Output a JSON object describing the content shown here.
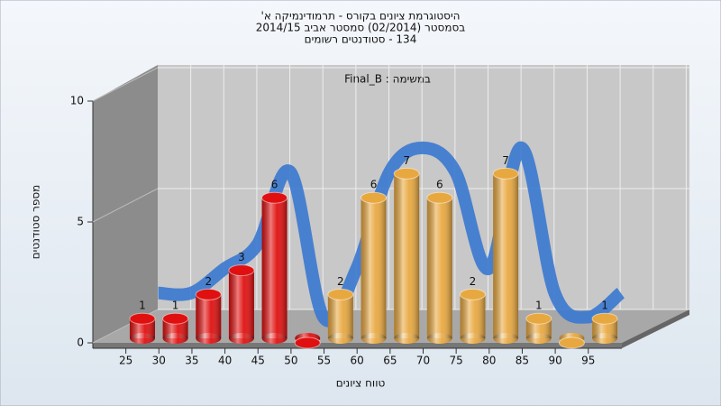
{
  "chart_data": {
    "type": "bar",
    "title": [
      "היסטוגרמת ציונים בקורס - תרמודינמיקה א'",
      "בסמסטר (02/2014) סמסטר אביב 2014/15",
      "134 - סטודנטים רשומים"
    ],
    "annotation": "במשימה : Final_B",
    "x_label": "טווח ציונים",
    "y_label": "מספר סטודנטים",
    "categories": [
      "25",
      "30",
      "35",
      "40",
      "45",
      "50",
      "55",
      "60",
      "65",
      "70",
      "75",
      "80",
      "85",
      "90",
      "95"
    ],
    "values": [
      1,
      1,
      2,
      3,
      6,
      0,
      2,
      6,
      7,
      6,
      2,
      7,
      1,
      0,
      1
    ],
    "colors": [
      "#e01010",
      "#e01010",
      "#e01010",
      "#e01010",
      "#e01010",
      "#e01010",
      "#e8a840",
      "#e8a840",
      "#e8a840",
      "#e8a840",
      "#e8a840",
      "#e8a840",
      "#e8a840",
      "#e8a840",
      "#e8a840"
    ],
    "line_color": "#3a78d0",
    "ylim": [
      0,
      10
    ],
    "yticks": [
      0,
      5,
      10
    ],
    "grid": true
  }
}
